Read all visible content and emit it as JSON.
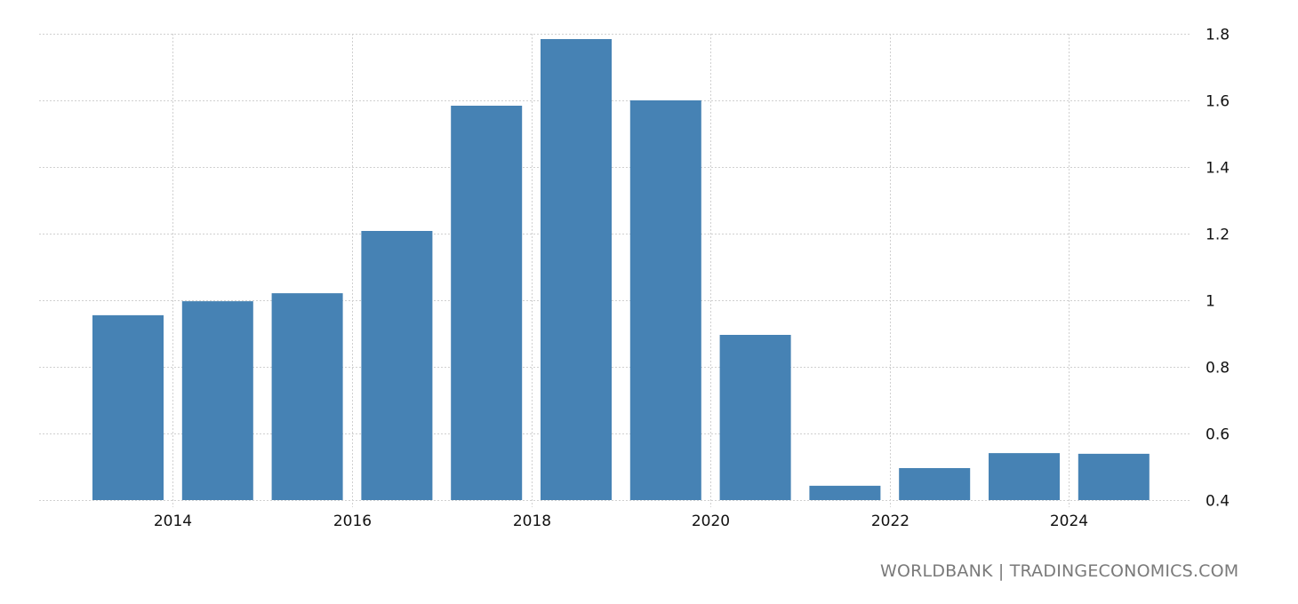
{
  "chart_data": {
    "type": "bar",
    "title": "",
    "xlabel": "",
    "ylabel": "",
    "categories": [
      "2013",
      "2014",
      "2015",
      "2016",
      "2017",
      "2018",
      "2019",
      "2020",
      "2021",
      "2022",
      "2023",
      "2024"
    ],
    "values": [
      0.955,
      0.997,
      1.021,
      1.208,
      1.584,
      1.784,
      1.6,
      0.896,
      0.443,
      0.496,
      0.541,
      0.539
    ],
    "ylim": [
      0.4,
      1.8
    ],
    "y_ticks": [
      "0.4",
      "0.6",
      "0.8",
      "1",
      "1.2",
      "1.4",
      "1.6",
      "1.8"
    ],
    "x_ticks": [
      "2014",
      "2016",
      "2018",
      "2020",
      "2022",
      "2024"
    ],
    "y_axis_position": "right",
    "grid": true,
    "legend": null,
    "bar_color": "#4682b4"
  },
  "source": {
    "label": "WORLDBANK | TRADINGECONOMICS.COM"
  }
}
